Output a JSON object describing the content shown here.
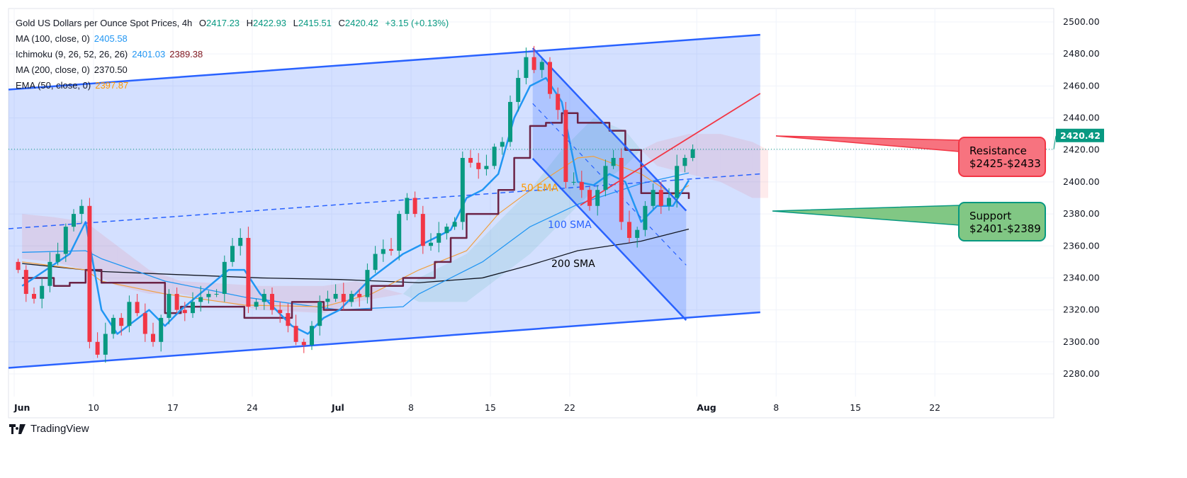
{
  "header": {
    "symbol": "Gold US Dollars per Ounce Spot Prices, 4h",
    "o_label": "O",
    "o": "2417.23",
    "h_label": "H",
    "h": "2422.93",
    "l_label": "L",
    "l": "2415.51",
    "c_label": "C",
    "c": "2420.42",
    "change": "+3.15 (+0.13%)",
    "indicators": [
      {
        "label": "MA (100, close, 0)",
        "values": [
          "2405.58"
        ],
        "colors": [
          "#2196f3"
        ]
      },
      {
        "label": "Ichimoku (9, 26, 52, 26, 26)",
        "values": [
          "2401.03",
          "2389.38"
        ],
        "colors": [
          "#2196f3",
          "#801922"
        ]
      },
      {
        "label": "MA (200, close, 0)",
        "values": [
          "2370.50"
        ],
        "colors": [
          "#131722"
        ]
      },
      {
        "label": "EMA (50, close, 0)",
        "values": [
          "2397.87"
        ],
        "colors": [
          "#ff9800"
        ]
      }
    ]
  },
  "branding": {
    "name": "TradingView"
  },
  "colors": {
    "up": "#089981",
    "down": "#f23645",
    "channel": "#2962ff",
    "resistance": "#f23645",
    "support": "#089981",
    "ma100": "#2196f3",
    "ma200": "#131722",
    "ema50": "#f0a040",
    "kijun": "#6b2346",
    "tenkan": "#2196f3"
  },
  "chart_data": {
    "type": "candlestick",
    "timeframe": "4h",
    "ylim": [
      2270,
      2505
    ],
    "yticks": [
      "2280.00",
      "2300.00",
      "2320.00",
      "2340.00",
      "2360.00",
      "2380.00",
      "2400.00",
      "2420.00",
      "2440.00",
      "2460.00",
      "2480.00",
      "2500.00"
    ],
    "xticks": [
      {
        "label": "Jun",
        "date": "06-03",
        "bold": true
      },
      {
        "label": "10",
        "date": "06-10"
      },
      {
        "label": "17",
        "date": "06-17"
      },
      {
        "label": "24",
        "date": "06-24"
      },
      {
        "label": "Jul",
        "date": "07-01",
        "bold": true
      },
      {
        "label": "8",
        "date": "07-08"
      },
      {
        "label": "15",
        "date": "07-15"
      },
      {
        "label": "22",
        "date": "07-22"
      },
      {
        "label": "Aug",
        "date": "08-01",
        "bold": true
      },
      {
        "label": "8",
        "date": "08-08"
      },
      {
        "label": "15",
        "date": "08-15"
      },
      {
        "label": "22",
        "date": "08-22"
      }
    ],
    "last_price": "2420.42",
    "candles": [
      [
        "06-03",
        [
          2345,
          2330
        ]
      ],
      [
        "06-04",
        [
          2327,
          2335
        ]
      ],
      [
        "06-05",
        [
          2350,
          2355
        ]
      ],
      [
        "06-06",
        [
          2372,
          2380
        ]
      ],
      [
        "06-07",
        [
          2385,
          2300
        ]
      ],
      [
        "06-10",
        [
          2292,
          2305
        ]
      ],
      [
        "06-11",
        [
          2315,
          2310
        ]
      ],
      [
        "06-12",
        [
          2325,
          2318
        ]
      ],
      [
        "06-13",
        [
          2305,
          2300
        ]
      ],
      [
        "06-14",
        [
          2315,
          2330
        ]
      ],
      [
        "06-17",
        [
          2320,
          2318
        ]
      ],
      [
        "06-18",
        [
          2325,
          2328
        ]
      ],
      [
        "06-19",
        [
          2330,
          2330
        ]
      ],
      [
        "06-20",
        [
          2350,
          2360
        ]
      ],
      [
        "06-21",
        [
          2365,
          2322
        ]
      ],
      [
        "06-24",
        [
          2325,
          2330
        ]
      ],
      [
        "06-25",
        [
          2320,
          2318
        ]
      ],
      [
        "06-26",
        [
          2310,
          2300
        ]
      ],
      [
        "06-27",
        [
          2298,
          2310
        ]
      ],
      [
        "06-28",
        [
          2325,
          2327
        ]
      ],
      [
        "07-01",
        [
          2330,
          2325
        ]
      ],
      [
        "07-02",
        [
          2330,
          2328
        ]
      ],
      [
        "07-03",
        [
          2345,
          2355
        ]
      ],
      [
        "07-04",
        [
          2358,
          2357
        ]
      ],
      [
        "07-05",
        [
          2380,
          2390
        ]
      ],
      [
        "07-08",
        [
          2380,
          2360
        ]
      ],
      [
        "07-09",
        [
          2362,
          2368
        ]
      ],
      [
        "07-10",
        [
          2372,
          2375
        ]
      ],
      [
        "07-11",
        [
          2415,
          2412
        ]
      ],
      [
        "07-12",
        [
          2408,
          2410
        ]
      ],
      [
        "07-15",
        [
          2422,
          2425
        ]
      ],
      [
        "07-16",
        [
          2450,
          2465
        ]
      ],
      [
        "07-17",
        [
          2478,
          2470
        ]
      ],
      [
        "07-18",
        [
          2475,
          2455
        ]
      ],
      [
        "07-19",
        [
          2445,
          2400
        ]
      ],
      [
        "07-22",
        [
          2400,
          2395
        ]
      ],
      [
        "07-23",
        [
          2385,
          2395
        ]
      ],
      [
        "07-24",
        [
          2410,
          2415
        ]
      ],
      [
        "07-25",
        [
          2375,
          2365
        ]
      ],
      [
        "07-26",
        [
          2370,
          2385
        ]
      ],
      [
        "07-29",
        [
          2395,
          2385
        ]
      ],
      [
        "07-30",
        [
          2390,
          2410
        ]
      ],
      [
        "07-31",
        [
          2415,
          2420.42
        ]
      ]
    ],
    "lines": {
      "ma200": [
        [
          "06-03",
          2349
        ],
        [
          "06-10",
          2344
        ],
        [
          "06-17",
          2342
        ],
        [
          "06-24",
          2340
        ],
        [
          "07-01",
          2339
        ],
        [
          "07-08",
          2337
        ],
        [
          "07-12",
          2340
        ],
        [
          "07-17",
          2348
        ],
        [
          "07-22",
          2357
        ],
        [
          "07-26",
          2363
        ],
        [
          "07-31",
          2370.5
        ]
      ],
      "ma100": [
        [
          "06-03",
          2356
        ],
        [
          "06-07",
          2357
        ],
        [
          "06-10",
          2352
        ],
        [
          "06-14",
          2338
        ],
        [
          "06-21",
          2328
        ],
        [
          "07-01",
          2320
        ],
        [
          "07-05",
          2322
        ],
        [
          "07-08",
          2330
        ],
        [
          "07-12",
          2350
        ],
        [
          "07-17",
          2372
        ],
        [
          "07-22",
          2386
        ],
        [
          "07-26",
          2399
        ],
        [
          "07-31",
          2405.58
        ]
      ],
      "ema50": [
        [
          "06-03",
          2350
        ],
        [
          "06-07",
          2345
        ],
        [
          "06-10",
          2338
        ],
        [
          "06-14",
          2330
        ],
        [
          "06-21",
          2323
        ],
        [
          "06-28",
          2322
        ],
        [
          "07-03",
          2330
        ],
        [
          "07-08",
          2345
        ],
        [
          "07-11",
          2357
        ],
        [
          "07-15",
          2380
        ],
        [
          "07-18",
          2402
        ],
        [
          "07-22",
          2415
        ],
        [
          "07-23",
          2416
        ],
        [
          "07-26",
          2405
        ],
        [
          "07-30",
          2392
        ],
        [
          "07-31",
          2397.87
        ]
      ],
      "kijun": [
        [
          "06-03",
          2340
        ],
        [
          "06-05",
          2335
        ],
        [
          "06-06",
          2337
        ],
        [
          "06-07",
          2345
        ],
        [
          "06-10",
          2337
        ],
        [
          "06-13",
          2337
        ],
        [
          "06-14",
          2318
        ],
        [
          "06-17",
          2322
        ],
        [
          "06-20",
          2322
        ],
        [
          "06-21",
          2315
        ],
        [
          "06-24",
          2315
        ],
        [
          "06-26",
          2325
        ],
        [
          "06-28",
          2320
        ],
        [
          "07-01",
          2320
        ],
        [
          "07-03",
          2335
        ],
        [
          "07-05",
          2340
        ],
        [
          "07-08",
          2340
        ],
        [
          "07-09",
          2350
        ],
        [
          "07-10",
          2365
        ],
        [
          "07-11",
          2380
        ],
        [
          "07-12",
          2380
        ],
        [
          "07-15",
          2395
        ],
        [
          "07-16",
          2415
        ],
        [
          "07-17",
          2435
        ],
        [
          "07-18",
          2437
        ],
        [
          "07-19",
          2443
        ],
        [
          "07-22",
          2437
        ],
        [
          "07-24",
          2432
        ],
        [
          "07-25",
          2420
        ],
        [
          "07-26",
          2393
        ],
        [
          "07-30",
          2393
        ],
        [
          "07-31",
          2389.38
        ]
      ],
      "tenkan": [
        [
          "06-03",
          2335
        ],
        [
          "06-06",
          2355
        ],
        [
          "06-07",
          2375
        ],
        [
          "06-10",
          2320
        ],
        [
          "06-11",
          2305
        ],
        [
          "06-13",
          2320
        ],
        [
          "06-14",
          2310
        ],
        [
          "06-17",
          2320
        ],
        [
          "06-20",
          2345
        ],
        [
          "06-21",
          2345
        ],
        [
          "06-24",
          2330
        ],
        [
          "06-26",
          2310
        ],
        [
          "06-27",
          2305
        ],
        [
          "06-28",
          2315
        ],
        [
          "07-01",
          2320
        ],
        [
          "07-03",
          2340
        ],
        [
          "07-05",
          2355
        ],
        [
          "07-08",
          2360
        ],
        [
          "07-10",
          2370
        ],
        [
          "07-11",
          2390
        ],
        [
          "07-12",
          2395
        ],
        [
          "07-15",
          2405
        ],
        [
          "07-16",
          2440
        ],
        [
          "07-17",
          2460
        ],
        [
          "07-18",
          2465
        ],
        [
          "07-19",
          2450
        ],
        [
          "07-22",
          2400
        ],
        [
          "07-23",
          2398
        ],
        [
          "07-24",
          2405
        ],
        [
          "07-25",
          2400
        ],
        [
          "07-26",
          2375
        ],
        [
          "07-29",
          2385
        ],
        [
          "07-30",
          2385
        ],
        [
          "07-31",
          2401.03
        ]
      ]
    },
    "cloud": [
      [
        "06-03",
        2352,
        2380
      ],
      [
        "06-05",
        2350,
        2378
      ],
      [
        "06-07",
        2345,
        2375
      ],
      [
        "06-11",
        2335,
        2360
      ],
      [
        "06-13",
        2330,
        2345
      ],
      [
        "06-17",
        2330,
        2338
      ],
      [
        "06-24",
        2320,
        2335
      ],
      [
        "06-28",
        2318,
        2335
      ],
      [
        "07-02",
        2325,
        2338
      ],
      [
        "07-05",
        2330,
        2330
      ],
      [
        "07-08",
        2340,
        2325
      ],
      [
        "07-11",
        2355,
        2325
      ],
      [
        "07-15",
        2375,
        2340
      ],
      [
        "07-17",
        2395,
        2355
      ],
      [
        "07-19",
        2420,
        2375
      ],
      [
        "07-23",
        2440,
        2395
      ],
      [
        "07-25",
        2432,
        2410
      ],
      [
        "07-26",
        2420,
        2420
      ],
      [
        "07-29",
        2410,
        2425
      ],
      [
        "07-31",
        2405,
        2430
      ],
      [
        "08-02",
        2400,
        2430
      ],
      [
        "08-06",
        2390,
        2425
      ],
      [
        "08-07",
        2390,
        2420
      ]
    ],
    "drawings": {
      "channel_upper": [
        [
          "06-03",
          0,
          2458
        ],
        [
          "08-07",
          0,
          2492
        ]
      ],
      "channel_lower": [
        [
          "06-03",
          0,
          2284
        ],
        [
          "08-07",
          0,
          2318.5
        ]
      ],
      "channel_mid": [
        [
          "06-03",
          0,
          2371
        ],
        [
          "08-07",
          0,
          2405
        ]
      ],
      "falling_upper": [
        [
          "07-17",
          16,
          2483.6
        ],
        [
          "07-31",
          8,
          2382
        ]
      ],
      "falling_lower": [
        [
          "07-17",
          16,
          2414.6
        ],
        [
          "07-31",
          8,
          2313.6
        ]
      ],
      "falling_mid": [
        [
          "07-17",
          16,
          2449
        ],
        [
          "07-31",
          8,
          2348
        ]
      ],
      "rising_red": [
        [
          "07-22",
          16,
          2385.4
        ],
        [
          "08-07",
          0,
          2455.3
        ]
      ]
    },
    "annotations": {
      "ema50_label": "50 EMA",
      "ma100_label": "100 SMA",
      "ma200_label": "200 SMA",
      "resistance_title": "Resistance",
      "resistance_range": "$2425-$2433",
      "support_title": "Support",
      "support_range": "$2401-$2389"
    }
  }
}
